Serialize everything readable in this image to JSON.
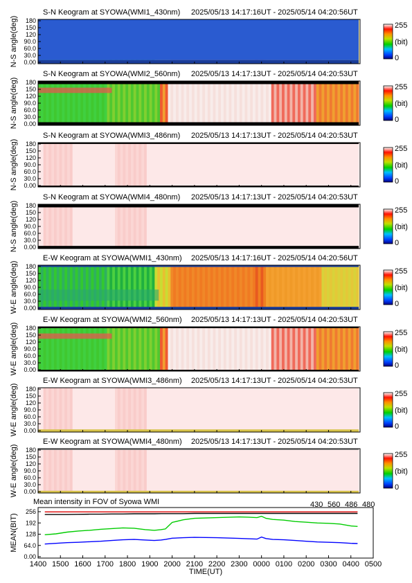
{
  "panels": [
    {
      "title": "S-N Keogram at SYOWA(WMI1_430nm)",
      "range": "2025/05/13 14:17:16UT - 2025/05/14 04:20:56UT",
      "ylabel": "N-S angle(deg)",
      "mode": "430",
      "bands": [
        [
          0,
          0.92,
          "#2a5bd0"
        ],
        [
          0.92,
          1,
          "#1a3d9a"
        ]
      ]
    },
    {
      "title": "S-N Keogram at SYOWA(WMI2_560nm)",
      "range": "2025/05/13 14:17:13UT - 2025/05/14 04:20:53UT",
      "ylabel": "N-S angle(deg)",
      "mode": "560",
      "bands": [
        [
          0,
          0.07,
          "#000000"
        ],
        [
          0.93,
          1,
          "#000000"
        ]
      ]
    },
    {
      "title": "S-N Keogram at SYOWA(WMI3_486nm)",
      "range": "2025/05/13 14:17:13UT - 2025/05/14 04:20:53UT",
      "ylabel": "N-S angle(deg)",
      "mode": "486",
      "bands": [
        [
          0,
          0.03,
          "#000000"
        ],
        [
          0.97,
          1,
          "#000000"
        ]
      ]
    },
    {
      "title": "S-N Keogram at SYOWA(WMI4_480nm)",
      "range": "2025/05/13 14:17:13UT - 2025/05/14 04:20:53UT",
      "ylabel": "N-S angle(deg)",
      "mode": "480",
      "bands": [
        [
          0,
          0.07,
          "#000000"
        ],
        [
          0.94,
          1,
          "#000000"
        ]
      ]
    },
    {
      "title": "E-W Keogram at SYOWA(WMI1_430nm)",
      "range": "2025/05/13 14:17:16UT - 2025/05/14 04:20:56UT",
      "ylabel": "W-E angle(deg)",
      "mode": "430",
      "bands": [
        [
          0,
          0.04,
          "#1a3d9a"
        ],
        [
          0.94,
          1,
          "#1a3d9a"
        ]
      ]
    },
    {
      "title": "E-W Keogram at SYOWA(WMI2_560nm)",
      "range": "2025/05/13 14:17:13UT - 2025/05/14 04:20:53UT",
      "ylabel": "W-E angle(deg)",
      "mode": "560",
      "bands": [
        [
          0,
          0.03,
          "#000000"
        ],
        [
          0.97,
          1,
          "#000000"
        ]
      ]
    },
    {
      "title": "E-W Keogram at SYOWA(WMI3_486nm)",
      "range": "2025/05/13 14:17:13UT - 2025/05/14 04:20:53UT",
      "ylabel": "W-E angle(deg)",
      "mode": "486",
      "bands": [
        [
          0.94,
          1,
          "#d6c24a"
        ]
      ]
    },
    {
      "title": "E-W Keogram at SYOWA(WMI4_480nm)",
      "range": "2025/05/13 14:17:13UT - 2025/05/14 04:20:53UT",
      "ylabel": "W-E angle(deg)",
      "mode": "480",
      "bands": [
        [
          0,
          0.03,
          "#888888"
        ],
        [
          0.95,
          1,
          "#d6c24a"
        ]
      ]
    }
  ],
  "y_ticks": [
    "180",
    "150",
    "120",
    "90.0",
    "60.0",
    "30.0",
    "0.00"
  ],
  "colorbar": {
    "max": "255",
    "unit": "(bit)",
    "min": "0"
  },
  "line_panel": {
    "title": "Mean intensity in FOV of Syowa WMI",
    "legend": [
      {
        "label": "430",
        "color": "#0000ff"
      },
      {
        "label": "560",
        "color": "#00cc00"
      },
      {
        "label": "486",
        "color": "#dd0000"
      },
      {
        "label": "480",
        "color": "#000000"
      }
    ],
    "ylabel": "MEAN(BIT)",
    "y_ticks": [
      "256",
      "192",
      "128",
      "64.0",
      "0.00"
    ],
    "xlabel": "TIME(UT)",
    "x_ticks": [
      "1400",
      "1500",
      "1600",
      "1700",
      "1800",
      "1900",
      "2000",
      "2100",
      "2200",
      "2300",
      "0000",
      "0100",
      "0200",
      "0300",
      "0400",
      "0500"
    ]
  },
  "chart_data": {
    "type": "line",
    "title": "Mean intensity in FOV of Syowa WMI",
    "xlabel": "TIME(UT)",
    "ylabel": "MEAN(BIT)",
    "xlim": [
      14,
      29
    ],
    "ylim": [
      0,
      256
    ],
    "x": [
      14.3,
      14.8,
      15.3,
      15.8,
      16.3,
      16.8,
      17.3,
      17.8,
      18.3,
      18.8,
      19.2,
      19.5,
      19.7,
      20.0,
      20.5,
      21.0,
      21.5,
      22.0,
      22.5,
      23.0,
      23.4,
      23.8,
      24.0,
      24.2,
      24.5,
      25.0,
      25.5,
      26.0,
      26.5,
      27.0,
      27.5,
      28.0,
      28.3
    ],
    "series": [
      {
        "name": "430",
        "color": "#0000ff",
        "values": [
          72,
          76,
          80,
          82,
          85,
          88,
          92,
          96,
          98,
          95,
          92,
          95,
          98,
          105,
          108,
          110,
          109,
          108,
          106,
          104,
          102,
          100,
          112,
          103,
          98,
          96,
          92,
          88,
          84,
          82,
          80,
          76,
          75
        ]
      },
      {
        "name": "560",
        "color": "#00cc00",
        "values": [
          125,
          130,
          140,
          146,
          150,
          156,
          160,
          164,
          162,
          154,
          150,
          154,
          158,
          195,
          210,
          218,
          220,
          222,
          224,
          226,
          225,
          222,
          230,
          218,
          212,
          208,
          200,
          196,
          192,
          190,
          186,
          175,
          172
        ]
      },
      {
        "name": "486",
        "color": "#dd0000",
        "values": [
          255,
          255,
          255,
          255,
          255,
          255,
          255,
          255,
          255,
          255,
          255,
          255,
          255,
          255,
          255,
          255,
          255,
          255,
          255,
          255,
          255,
          255,
          255,
          255,
          255,
          255,
          255,
          255,
          255,
          255,
          255,
          255,
          255
        ]
      },
      {
        "name": "480",
        "color": "#000000",
        "values": [
          240,
          240,
          240,
          241,
          242,
          242,
          243,
          243,
          244,
          244,
          244,
          245,
          245,
          245,
          245,
          246,
          246,
          246,
          246,
          246,
          246,
          246,
          246,
          246,
          246,
          246,
          246,
          246,
          246,
          246,
          246,
          246,
          246
        ]
      }
    ]
  }
}
